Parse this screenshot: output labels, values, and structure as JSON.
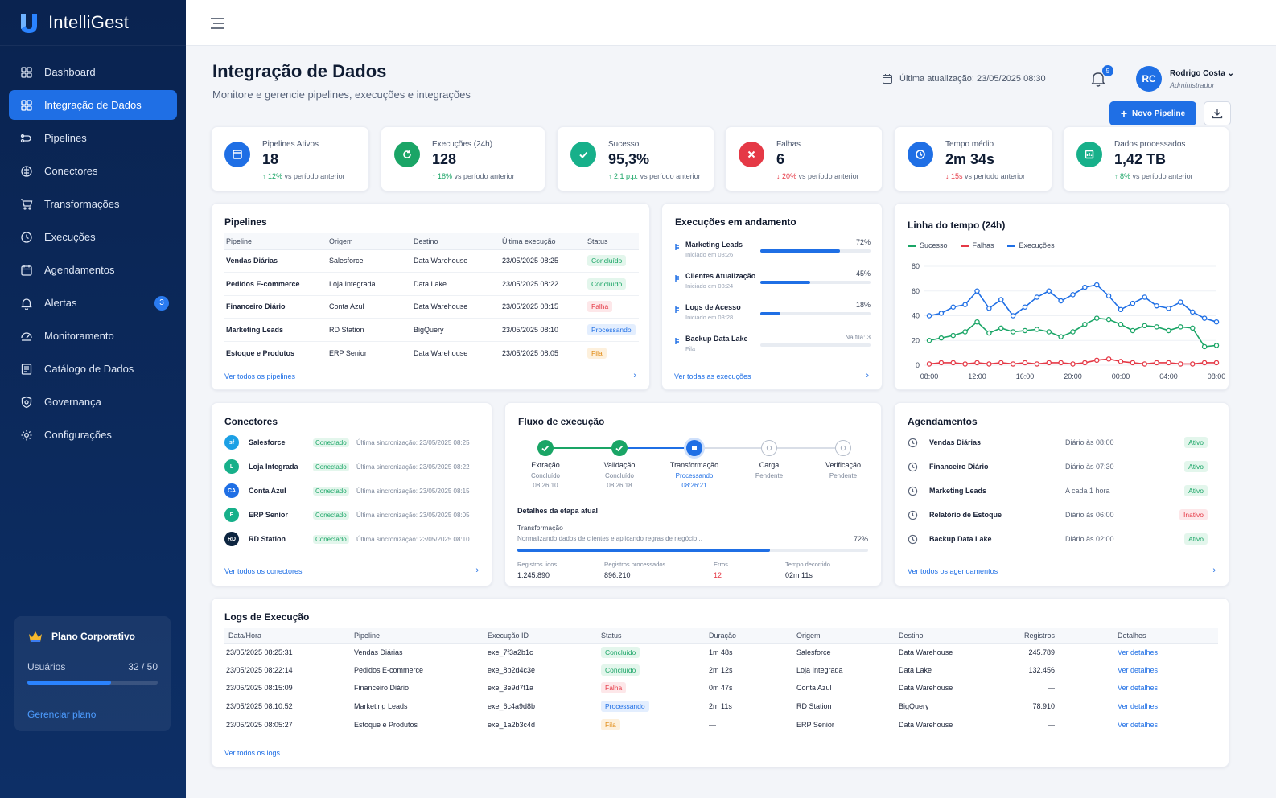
{
  "app": {
    "name": "IntelliGest"
  },
  "sidebar": {
    "items": [
      {
        "label": "Dashboard",
        "icon": "grid-icon"
      },
      {
        "label": "Integração de Dados",
        "icon": "grid-icon",
        "active": true
      },
      {
        "label": "Pipelines",
        "icon": "pipeline-icon"
      },
      {
        "label": "Conectores",
        "icon": "connector-icon"
      },
      {
        "label": "Transformações",
        "icon": "cart-icon"
      },
      {
        "label": "Execuções",
        "icon": "clock-icon"
      },
      {
        "label": "Agendamentos",
        "icon": "calendar-icon"
      },
      {
        "label": "Alertas",
        "icon": "bell-icon",
        "badge": "3"
      },
      {
        "label": "Monitoramento",
        "icon": "gauge-icon"
      },
      {
        "label": "Catálogo de Dados",
        "icon": "catalog-icon"
      },
      {
        "label": "Governança",
        "icon": "shield-icon"
      },
      {
        "label": "Configurações",
        "icon": "gear-icon"
      }
    ],
    "plan": {
      "title": "Plano Corporativo",
      "users_label": "Usuários",
      "users_value": "32 / 50",
      "users_used": 32,
      "users_total": 50,
      "manage": "Gerenciar plano"
    }
  },
  "header": {
    "title": "Integração de Dados",
    "subtitle": "Monitore e gerencie pipelines, execuções e integrações",
    "updated": "Última atualização: 23/05/2025 08:30",
    "notif_count": "5",
    "user": {
      "initials": "RC",
      "name": "Rodrigo Costa",
      "role": "Administrador"
    },
    "new_button": "Novo Pipeline"
  },
  "kpis": [
    {
      "label": "Pipelines Ativos",
      "value": "18",
      "arrow": "↑",
      "change": "12%",
      "suffix": "vs período anterior",
      "color": "#1f6fe5",
      "icon": "window-icon",
      "dir": "up"
    },
    {
      "label": "Execuções (24h)",
      "value": "128",
      "arrow": "↑",
      "change": "18%",
      "suffix": "vs período anterior",
      "color": "#1aa566",
      "icon": "refresh-icon",
      "dir": "up"
    },
    {
      "label": "Sucesso",
      "value": "95,3%",
      "arrow": "↑",
      "change": "2,1 p.p.",
      "suffix": "vs período anterior",
      "color": "#17b08a",
      "icon": "check-icon",
      "dir": "up"
    },
    {
      "label": "Falhas",
      "value": "6",
      "arrow": "↓",
      "change": "20%",
      "suffix": "vs período anterior",
      "color": "#e53946",
      "icon": "x-icon",
      "dir": "down"
    },
    {
      "label": "Tempo médio",
      "value": "2m 34s",
      "arrow": "↓",
      "change": "15s",
      "suffix": "vs período anterior",
      "color": "#1f6fe5",
      "icon": "clock-icon",
      "dir": "down"
    },
    {
      "label": "Dados processados",
      "value": "1,42 TB",
      "arrow": "↑",
      "change": "8%",
      "suffix": "vs período anterior",
      "color": "#17b08a",
      "icon": "database-icon",
      "dir": "up"
    }
  ],
  "pipelines": {
    "title": "Pipelines",
    "columns": [
      "Pipeline",
      "Origem",
      "Destino",
      "Última execução",
      "Status"
    ],
    "rows": [
      [
        "Vendas Diárias",
        "Salesforce",
        "Data Warehouse",
        "23/05/2025 08:25",
        "Concluído"
      ],
      [
        "Pedidos E-commerce",
        "Loja Integrada",
        "Data Lake",
        "23/05/2025 08:22",
        "Concluído"
      ],
      [
        "Financeiro Diário",
        "Conta Azul",
        "Data Warehouse",
        "23/05/2025 08:15",
        "Falha"
      ],
      [
        "Marketing Leads",
        "RD Station",
        "BigQuery",
        "23/05/2025 08:10",
        "Processando"
      ],
      [
        "Estoque e Produtos",
        "ERP Senior",
        "Data Warehouse",
        "23/05/2025 08:05",
        "Fila"
      ]
    ],
    "link": "Ver todos os pipelines"
  },
  "running": {
    "title": "Execuções em andamento",
    "items": [
      {
        "name": "Marketing Leads",
        "sub": "Iniciado em 08:26",
        "pct": "72%",
        "value": 72
      },
      {
        "name": "Clientes Atualização",
        "sub": "Iniciado em 08:24",
        "pct": "45%",
        "value": 45
      },
      {
        "name": "Logs de Acesso",
        "sub": "Iniciado em 08:28",
        "pct": "18%",
        "value": 18
      },
      {
        "name": "Backup Data Lake",
        "sub": "Fila",
        "pct": "Na fila: 3",
        "value": 0
      }
    ],
    "link": "Ver todas as execuções"
  },
  "chart_data": {
    "type": "line",
    "title": "Linha do tempo (24h)",
    "x": [
      "08:00",
      "09:00",
      "10:00",
      "11:00",
      "12:00",
      "13:00",
      "14:00",
      "15:00",
      "16:00",
      "17:00",
      "18:00",
      "19:00",
      "20:00",
      "21:00",
      "22:00",
      "23:00",
      "00:00",
      "01:00",
      "02:00",
      "03:00",
      "04:00",
      "05:00",
      "06:00",
      "07:00",
      "08:00"
    ],
    "x_ticks": [
      "08:00",
      "12:00",
      "16:00",
      "20:00",
      "00:00",
      "04:00",
      "08:00"
    ],
    "ylim": [
      0,
      80
    ],
    "y_ticks": [
      "0",
      "20",
      "40",
      "60",
      "80"
    ],
    "legend": "top-left",
    "series": [
      {
        "name": "Sucesso",
        "color": "#1aa566",
        "values": [
          20,
          22,
          24,
          27,
          35,
          26,
          30,
          27,
          28,
          29,
          27,
          23,
          27,
          33,
          38,
          37,
          33,
          28,
          32,
          31,
          28,
          31,
          30,
          15,
          16
        ]
      },
      {
        "name": "Falhas",
        "color": "#e53946",
        "values": [
          1,
          2,
          2,
          1,
          2,
          1,
          2,
          1,
          2,
          1,
          2,
          2,
          1,
          2,
          4,
          5,
          3,
          2,
          1,
          2,
          2,
          1,
          1,
          2,
          2
        ]
      },
      {
        "name": "Execuções",
        "color": "#1f6fe5",
        "values": [
          40,
          42,
          47,
          49,
          60,
          46,
          53,
          40,
          47,
          55,
          60,
          52,
          57,
          63,
          65,
          56,
          45,
          50,
          55,
          48,
          46,
          51,
          43,
          38,
          35
        ]
      }
    ]
  },
  "connectors": {
    "title": "Conectores",
    "items": [
      {
        "name": "Salesforce",
        "status": "Conectado",
        "sync": "Última sincronização: 23/05/2025 08:25",
        "color": "#1ca0e5",
        "abbr": "sf"
      },
      {
        "name": "Loja Integrada",
        "status": "Conectado",
        "sync": "Última sincronização: 23/05/2025 08:22",
        "color": "#17b08a",
        "abbr": "L"
      },
      {
        "name": "Conta Azul",
        "status": "Conectado",
        "sync": "Última sincronização: 23/05/2025 08:15",
        "color": "#1f6fe5",
        "abbr": "CA"
      },
      {
        "name": "ERP Senior",
        "status": "Conectado",
        "sync": "Última sincronização: 23/05/2025 08:05",
        "color": "#17b08a",
        "abbr": "E"
      },
      {
        "name": "RD Station",
        "status": "Conectado",
        "sync": "Última sincronização: 23/05/2025 08:10",
        "color": "#0d2540",
        "abbr": "RD"
      }
    ],
    "link": "Ver todos os conectores"
  },
  "flow": {
    "title": "Fluxo de execução",
    "steps": [
      {
        "name": "Extração",
        "status": "Concluído",
        "time": "08:26:10",
        "state": "done"
      },
      {
        "name": "Validação",
        "status": "Concluído",
        "time": "08:26:18",
        "state": "done"
      },
      {
        "name": "Transformação",
        "status": "Processando",
        "time": "08:26:21",
        "state": "active"
      },
      {
        "name": "Carga",
        "status": "Pendente",
        "time": "",
        "state": "pending"
      },
      {
        "name": "Verificação",
        "status": "Pendente",
        "time": "",
        "state": "pending"
      }
    ],
    "details_title": "Detalhes da etapa atual",
    "step_name": "Transformação",
    "step_desc": "Normalizando dados de clientes e aplicando regras de negócio...",
    "step_pct": "72%",
    "step_value": 72,
    "stats": [
      {
        "label": "Registros lidos",
        "value": "1.245.890"
      },
      {
        "label": "Registros processados",
        "value": "896.210"
      },
      {
        "label": "Erros",
        "value": "12"
      },
      {
        "label": "Tempo decorrido",
        "value": "02m 11s"
      }
    ]
  },
  "schedules": {
    "title": "Agendamentos",
    "items": [
      {
        "name": "Vendas Diárias",
        "when": "Diário às 08:00",
        "status": "Ativo"
      },
      {
        "name": "Financeiro Diário",
        "when": "Diário às 07:30",
        "status": "Ativo"
      },
      {
        "name": "Marketing Leads",
        "when": "A cada 1 hora",
        "status": "Ativo"
      },
      {
        "name": "Relatório de Estoque",
        "when": "Diário às 06:00",
        "status": "Inativo"
      },
      {
        "name": "Backup Data Lake",
        "when": "Diário às 02:00",
        "status": "Ativo"
      }
    ],
    "link": "Ver todos os agendamentos"
  },
  "logs": {
    "title": "Logs de Execução",
    "columns": [
      "Data/Hora",
      "Pipeline",
      "Execução ID",
      "Status",
      "Duração",
      "Origem",
      "Destino",
      "Registros",
      "Detalhes"
    ],
    "rows": [
      [
        "23/05/2025 08:25:31",
        "Vendas Diárias",
        "exe_7f3a2b1c",
        "Concluído",
        "1m 48s",
        "Salesforce",
        "Data Warehouse",
        "245.789",
        "Ver detalhes"
      ],
      [
        "23/05/2025 08:22:14",
        "Pedidos E-commerce",
        "exe_8b2d4c3e",
        "Concluído",
        "2m 12s",
        "Loja Integrada",
        "Data Lake",
        "132.456",
        "Ver detalhes"
      ],
      [
        "23/05/2025 08:15:09",
        "Financeiro Diário",
        "exe_3e9d7f1a",
        "Falha",
        "0m 47s",
        "Conta Azul",
        "Data Warehouse",
        "—",
        "Ver detalhes"
      ],
      [
        "23/05/2025 08:10:52",
        "Marketing Leads",
        "exe_6c4a9d8b",
        "Processando",
        "2m 11s",
        "RD Station",
        "BigQuery",
        "78.910",
        "Ver detalhes"
      ],
      [
        "23/05/2025 08:05:27",
        "Estoque e Produtos",
        "exe_1a2b3c4d",
        "Fila",
        "—",
        "ERP Senior",
        "Data Warehouse",
        "—",
        "Ver detalhes"
      ]
    ],
    "link": "Ver todos os logs"
  }
}
